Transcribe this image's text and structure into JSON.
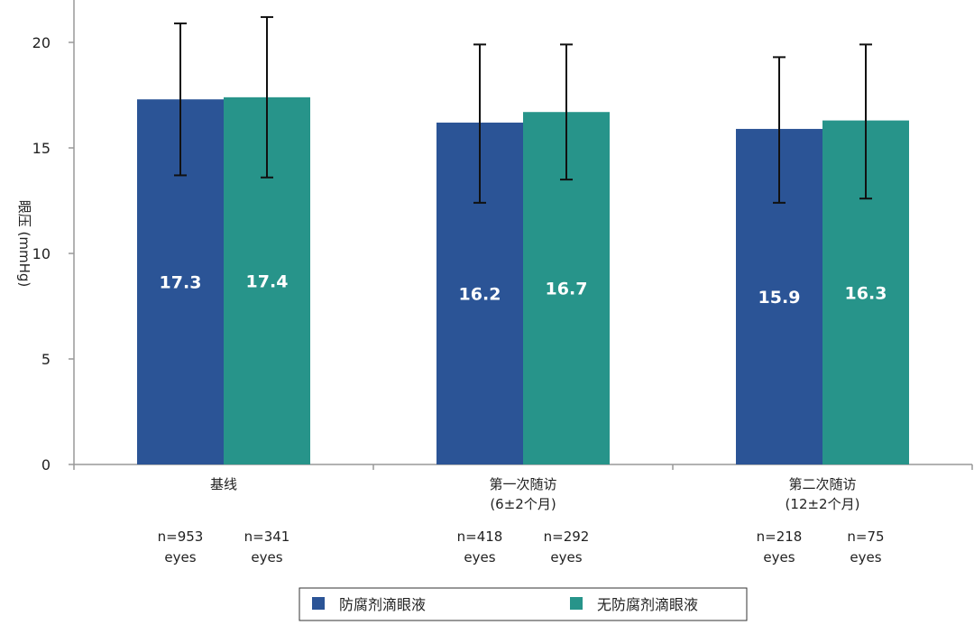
{
  "chart_data": {
    "type": "bar",
    "ylabel": "眼压 (mmHg)",
    "ylim": [
      0,
      22
    ],
    "yticks": [
      0,
      5,
      10,
      15,
      20
    ],
    "grid": false,
    "legend_position": "bottom",
    "categories": [
      {
        "label_lines": [
          "基线"
        ],
        "n": [
          [
            "n=953",
            "eyes"
          ],
          [
            "n=341",
            "eyes"
          ]
        ]
      },
      {
        "label_lines": [
          "第一次随访",
          "(6±2个月)"
        ],
        "n": [
          [
            "n=418",
            "eyes"
          ],
          [
            "n=292",
            "eyes"
          ]
        ]
      },
      {
        "label_lines": [
          "第二次随访",
          "(12±2个月)"
        ],
        "n": [
          [
            "n=218",
            "eyes"
          ],
          [
            "n=75",
            "eyes"
          ]
        ]
      }
    ],
    "series": [
      {
        "name": "防腐剂滴眼液",
        "color": "#2b5496",
        "values": [
          17.3,
          16.2,
          15.9
        ],
        "value_labels": [
          "17.3",
          "16.2",
          "15.9"
        ],
        "error_high": [
          20.9,
          19.9,
          19.3
        ],
        "error_low": [
          13.7,
          12.4,
          12.4
        ]
      },
      {
        "name": "无防腐剂滴眼液",
        "color": "#27948a",
        "values": [
          17.4,
          16.7,
          16.3
        ],
        "value_labels": [
          "17.4",
          "16.7",
          "16.3"
        ],
        "error_high": [
          21.2,
          19.9,
          19.9
        ],
        "error_low": [
          13.6,
          13.5,
          12.6
        ]
      }
    ]
  }
}
